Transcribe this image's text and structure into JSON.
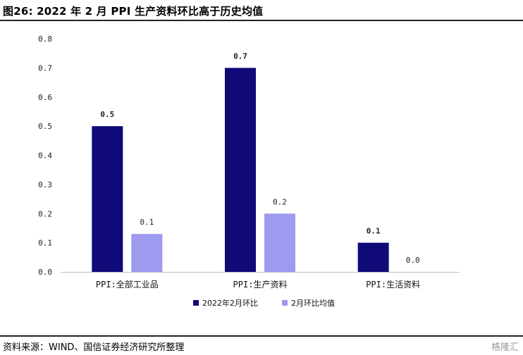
{
  "header": {
    "title": "图26: 2022 年 2 月 PPI 生产资料环比高于历史均值"
  },
  "footer": {
    "source": "资料来源：WIND、国信证券经济研究所整理",
    "watermark": "格隆汇"
  },
  "chart_data": {
    "type": "bar",
    "categories": [
      "PPI:全部工业品",
      "PPI:生产资料",
      "PPI:生活资料"
    ],
    "series": [
      {
        "name": "2022年2月环比",
        "values": [
          0.5,
          0.7,
          0.1
        ],
        "labels": [
          "0.5",
          "0.7",
          "0.1"
        ],
        "color": "#0f0a78"
      },
      {
        "name": "2月环比均值",
        "values": [
          0.13,
          0.2,
          0.0
        ],
        "labels": [
          "0.1",
          "0.2",
          "0.0"
        ],
        "color": "#9d9af0"
      }
    ],
    "ylim": [
      0,
      0.8
    ],
    "yticks": [
      "0.0",
      "0.1",
      "0.2",
      "0.3",
      "0.4",
      "0.5",
      "0.6",
      "0.7",
      "0.8"
    ],
    "legend_position": "bottom",
    "grid": false
  }
}
